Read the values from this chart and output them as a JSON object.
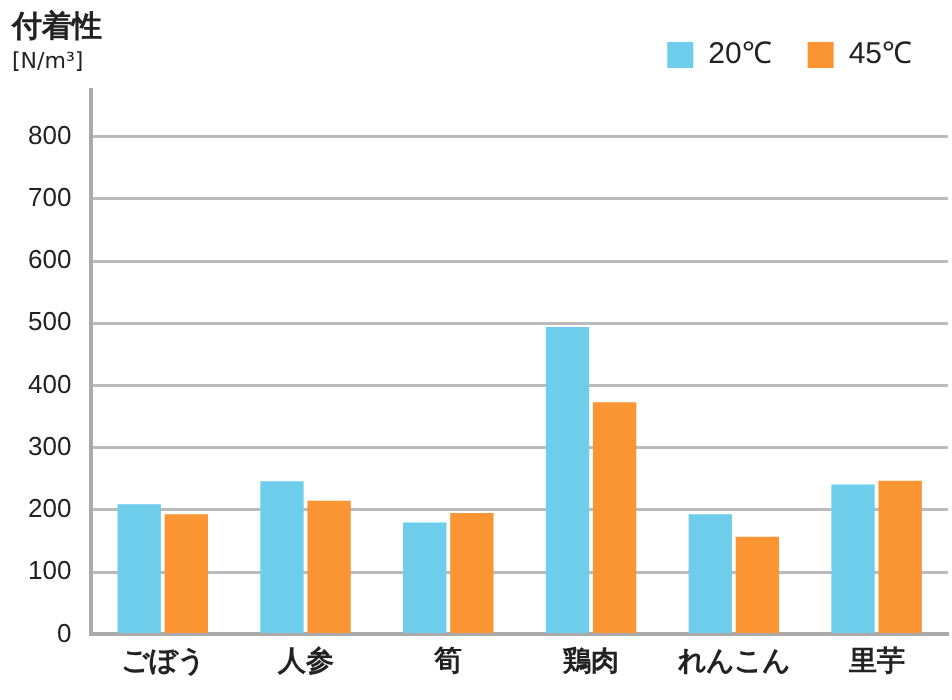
{
  "chart_data": {
    "type": "bar",
    "title": "付着性",
    "ylabel": "[N/m³]",
    "categories": [
      "ごぼう",
      "人参",
      "筍",
      "鶏肉",
      "れんこん",
      "里芋"
    ],
    "series": [
      {
        "name": "20℃",
        "color": "#6dcdeb",
        "values": [
          209,
          246,
          180,
          494,
          193,
          241
        ]
      },
      {
        "name": "45℃",
        "color": "#fb9433",
        "values": [
          193,
          215,
          195,
          373,
          157,
          247
        ]
      }
    ],
    "ylim": [
      0,
      875
    ],
    "yticks": [
      0,
      100,
      200,
      300,
      400,
      500,
      600,
      700,
      800
    ],
    "grid": "y",
    "legend": "top right"
  }
}
